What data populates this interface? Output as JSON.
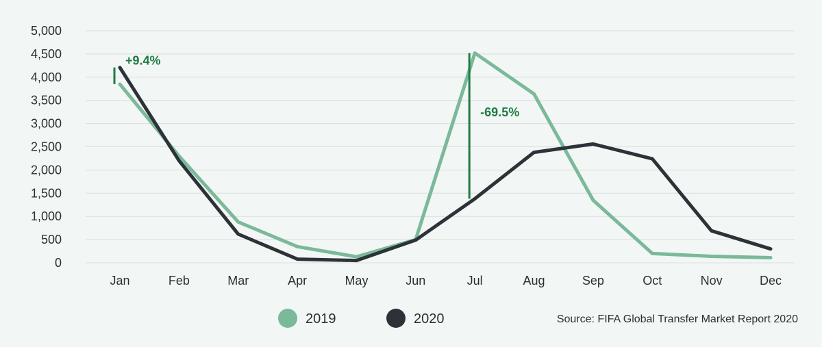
{
  "chart_data": {
    "type": "line",
    "categories": [
      "Jan",
      "Feb",
      "Mar",
      "Apr",
      "May",
      "Jun",
      "Jul",
      "Aug",
      "Sep",
      "Oct",
      "Nov",
      "Dec"
    ],
    "series": [
      {
        "name": "2019",
        "color": "#7ab99a",
        "values": [
          3850,
          2300,
          880,
          350,
          130,
          500,
          4520,
          3640,
          1350,
          200,
          140,
          110
        ]
      },
      {
        "name": "2020",
        "color": "#2d3238",
        "values": [
          4210,
          2200,
          620,
          80,
          50,
          490,
          1380,
          2380,
          2560,
          2240,
          690,
          300
        ]
      }
    ],
    "ylim": [
      0,
      5000
    ],
    "yticks": [
      0,
      500,
      1000,
      1500,
      2000,
      2500,
      3000,
      3500,
      4000,
      4500,
      5000
    ],
    "ytick_labels": [
      "0",
      "500",
      "1,000",
      "1,500",
      "2,000",
      "2,500",
      "3,000",
      "3,500",
      "4,000",
      "4,500",
      "5,000"
    ],
    "grid": true,
    "legend_position": "bottom",
    "annotations": [
      {
        "text": "+9.4%",
        "category": "Jan",
        "from_series": 0,
        "to_series": 1
      },
      {
        "text": "-69.5%",
        "category": "Jul",
        "from_series": 0,
        "to_series": 1
      }
    ],
    "annotation_color": "#1e7a45",
    "source": "Source: FIFA Global Transfer Market Report 2020"
  }
}
